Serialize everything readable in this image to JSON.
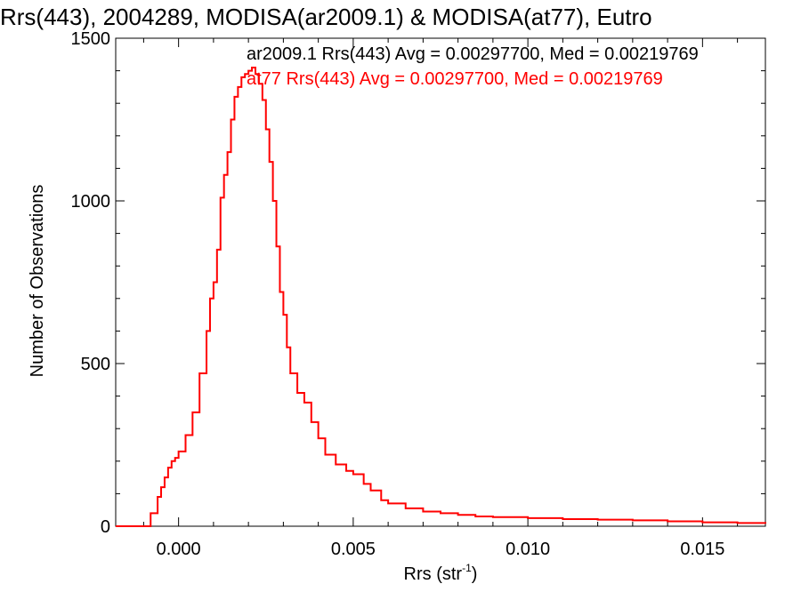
{
  "chart_data": {
    "type": "line",
    "title": "Rrs(443), 2004289, MODISA(ar2009.1) & MODISA(at77), Eutro",
    "xlabel": "Rrs (str",
    "xlabel_sup": "-1",
    "xlabel_close": ")",
    "ylabel": "Number of Observations",
    "xlim": [
      -0.0018,
      0.0168
    ],
    "ylim": [
      0,
      1500
    ],
    "xticks": [
      0.0,
      0.005,
      0.01,
      0.015
    ],
    "xtick_labels": [
      "0.000",
      "0.005",
      "0.010",
      "0.015"
    ],
    "yticks": [
      0,
      500,
      1000,
      1500
    ],
    "ytick_labels": [
      "0",
      "500",
      "1000",
      "1500"
    ],
    "grid": false,
    "legend_position": "top-right",
    "annotations": [
      {
        "text": "ar2009.1 Rrs(443) Avg = 0.00297700, Med = 0.00219769",
        "color": "#000000"
      },
      {
        "text": "at77 Rrs(443) Avg = 0.00297700, Med = 0.00219769",
        "color": "#ff0000"
      }
    ],
    "series": [
      {
        "color": "#ff0000",
        "x": [
          -0.0018,
          -0.001,
          -0.0008,
          -0.0006,
          -0.0005,
          -0.0004,
          -0.0003,
          -0.0002,
          -0.0001,
          0.0,
          0.0002,
          0.0004,
          0.0006,
          0.0008,
          0.0009,
          0.001,
          0.0011,
          0.0012,
          0.0013,
          0.0014,
          0.0015,
          0.0016,
          0.0017,
          0.0018,
          0.0019,
          0.002,
          0.0021,
          0.0022,
          0.0023,
          0.0024,
          0.0025,
          0.0026,
          0.0027,
          0.0028,
          0.0029,
          0.003,
          0.0031,
          0.0032,
          0.0034,
          0.0036,
          0.0038,
          0.004,
          0.0042,
          0.0045,
          0.0048,
          0.005,
          0.0053,
          0.0055,
          0.0058,
          0.006,
          0.0065,
          0.007,
          0.0075,
          0.008,
          0.0085,
          0.009,
          0.01,
          0.011,
          0.012,
          0.013,
          0.014,
          0.015,
          0.016,
          0.0168
        ],
        "y": [
          0,
          0,
          40,
          90,
          120,
          150,
          180,
          200,
          210,
          230,
          280,
          350,
          470,
          600,
          700,
          750,
          850,
          1010,
          1080,
          1150,
          1250,
          1320,
          1350,
          1380,
          1390,
          1400,
          1410,
          1390,
          1360,
          1310,
          1220,
          1120,
          1000,
          860,
          720,
          650,
          550,
          470,
          410,
          380,
          320,
          270,
          220,
          190,
          170,
          160,
          130,
          110,
          80,
          70,
          55,
          45,
          40,
          35,
          30,
          28,
          25,
          22,
          20,
          18,
          15,
          12,
          10,
          8
        ]
      }
    ]
  }
}
